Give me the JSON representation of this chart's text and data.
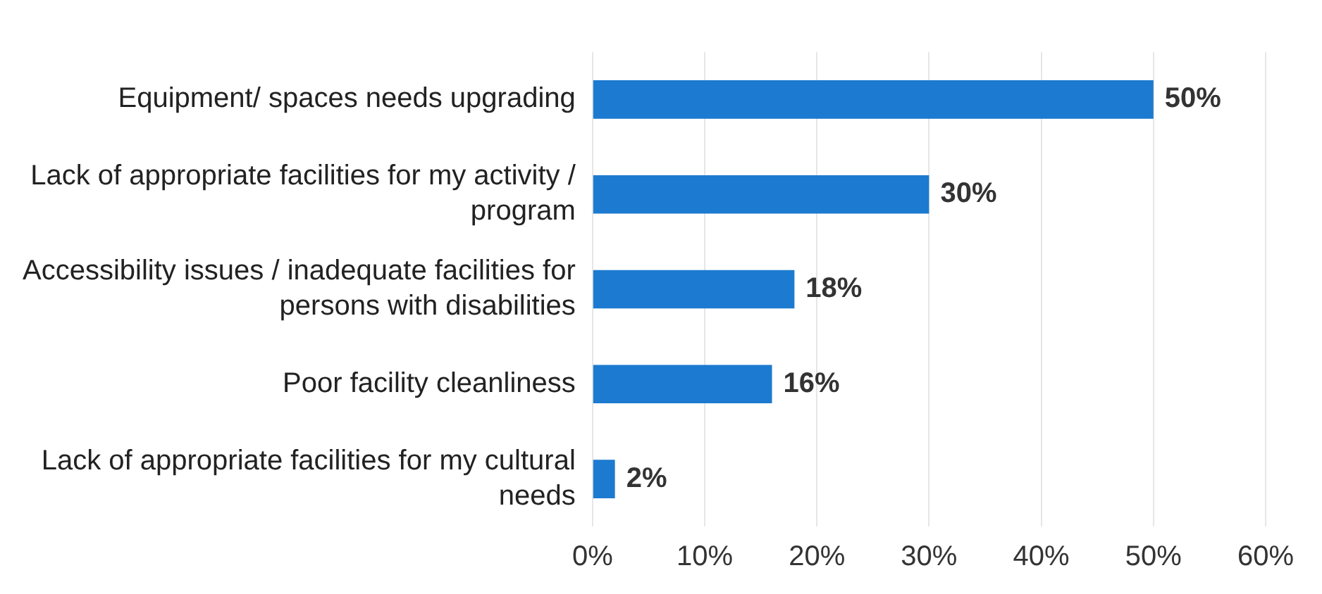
{
  "chart_data": {
    "type": "bar",
    "orientation": "horizontal",
    "categories": [
      "Equipment/ spaces needs upgrading",
      "Lack of appropriate facilities for my activity / program",
      "Accessibility issues / inadequate facilities for persons with disabilities",
      "Poor facility cleanliness",
      "Lack of appropriate facilities for my cultural needs"
    ],
    "values": [
      50,
      30,
      18,
      16,
      2
    ],
    "color": "#1c7ad0",
    "value_labels": [
      "50%",
      "30%",
      "18%",
      "16%",
      "2%"
    ],
    "xlim": [
      0,
      60
    ],
    "xticks": [
      {
        "value": 0,
        "label": "0%"
      },
      {
        "value": 10,
        "label": "10%"
      },
      {
        "value": 20,
        "label": "20%"
      },
      {
        "value": 30,
        "label": "30%"
      },
      {
        "value": 40,
        "label": "40%"
      },
      {
        "value": 50,
        "label": "50%"
      },
      {
        "value": 60,
        "label": "60%"
      }
    ],
    "grid": "x"
  }
}
